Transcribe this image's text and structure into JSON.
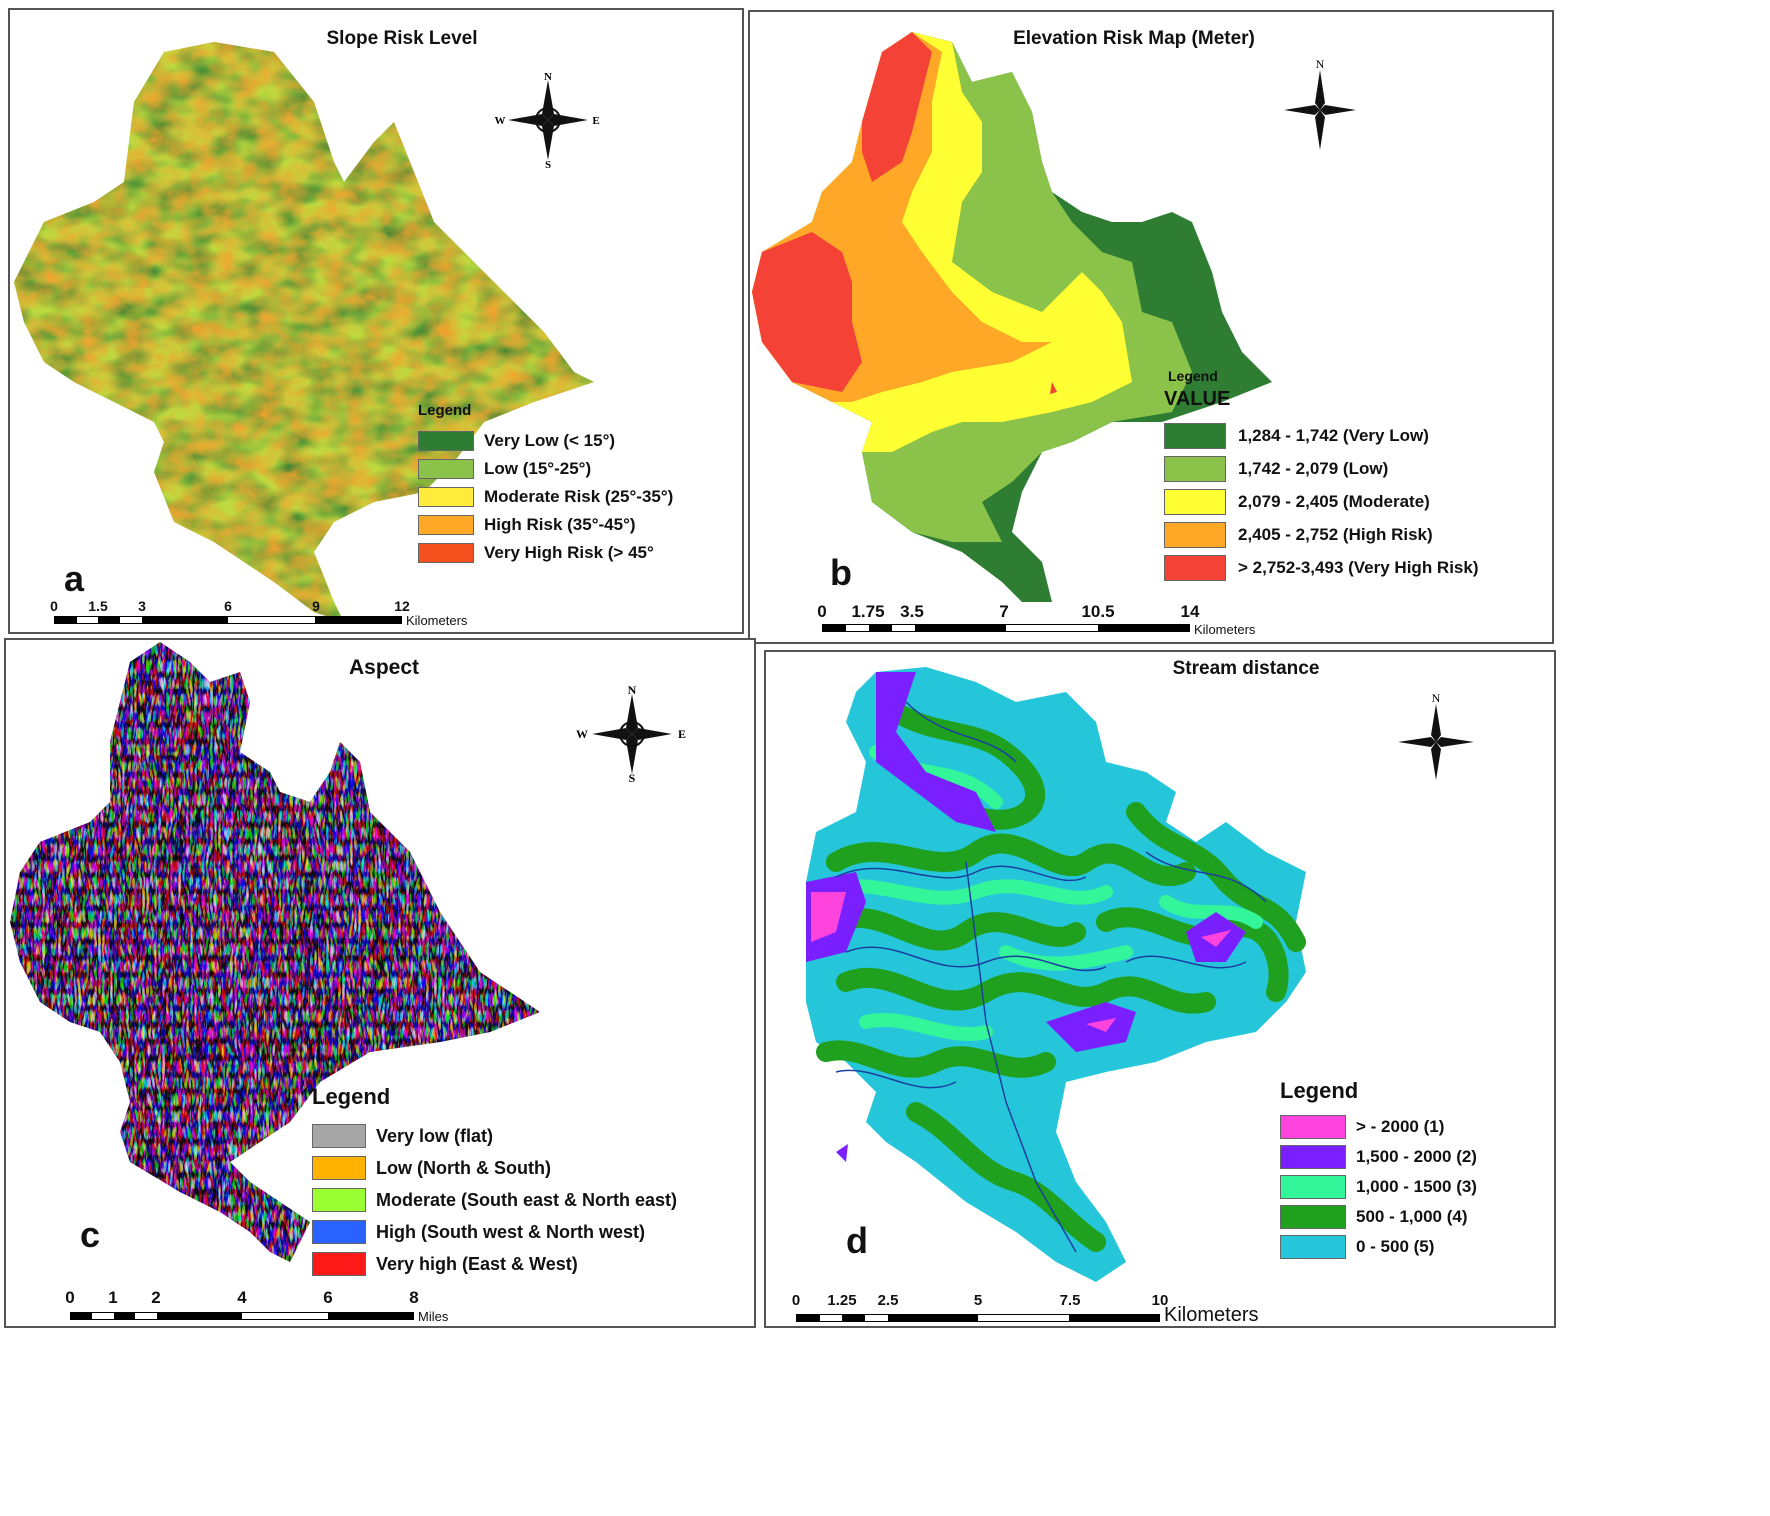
{
  "panels": {
    "a": {
      "title": "Slope Risk Level",
      "label": "a",
      "compass": {
        "n": "N",
        "s": "S",
        "e": "E",
        "w": "W"
      },
      "legend": {
        "title": "Legend",
        "items": [
          {
            "label": "Very Low (< 15°)",
            "color": "#2e7d32"
          },
          {
            "label": "Low (15°-25°)",
            "color": "#8bc34a"
          },
          {
            "label": "Moderate Risk (25°-35°)",
            "color": "#ffeb3b"
          },
          {
            "label": "High Risk (35°-45°)",
            "color": "#ffa726"
          },
          {
            "label": "Very High Risk (> 45°",
            "color": "#f4511e"
          }
        ]
      },
      "scale": {
        "ticks": [
          "0",
          "1.5",
          "3",
          "6",
          "9",
          "12"
        ],
        "unit": "Kilometers"
      }
    },
    "b": {
      "title": "Elevation Risk Map (Meter)",
      "label": "b",
      "compass": {
        "n": "N"
      },
      "legend": {
        "title": "Legend",
        "subtitle": "VALUE",
        "items": [
          {
            "label": "1,284 - 1,742 (Very Low)",
            "color": "#2e7d32"
          },
          {
            "label": "1,742 - 2,079 (Low)",
            "color": "#8bc34a"
          },
          {
            "label": "2,079 - 2,405 (Moderate)",
            "color": "#ffff33"
          },
          {
            "label": "2,405 - 2,752 (High Risk)",
            "color": "#ffa726"
          },
          {
            "label": "> 2,752-3,493 (Very High Risk)",
            "color": "#f44336"
          }
        ]
      },
      "scale": {
        "ticks": [
          "0",
          "1.75",
          "3.5",
          "7",
          "10.5",
          "14"
        ],
        "unit": "Kilometers"
      }
    },
    "c": {
      "title": "Aspect",
      "label": "c",
      "compass": {
        "n": "N",
        "s": "S",
        "e": "E",
        "w": "W"
      },
      "legend": {
        "title": "Legend",
        "items": [
          {
            "label": "Very low (flat)",
            "color": "#a6a6a6"
          },
          {
            "label": "Low (North & South)",
            "color": "#ffb300"
          },
          {
            "label": "Moderate (South east & North east)",
            "color": "#9cff33"
          },
          {
            "label": "High (South west & North west)",
            "color": "#2962ff"
          },
          {
            "label": "Very high (East & West)",
            "color": "#ff1a1a"
          }
        ]
      },
      "scale": {
        "ticks": [
          "0",
          "1",
          "2",
          "4",
          "6",
          "8"
        ],
        "unit": "Miles"
      }
    },
    "d": {
      "title": "Stream distance",
      "label": "d",
      "compass": {
        "n": "N"
      },
      "legend": {
        "title": "Legend",
        "items": [
          {
            "label": "> - 2000 (1)",
            "color": "#ff44dd"
          },
          {
            "label": "1,500 - 2000 (2)",
            "color": "#7a1fff"
          },
          {
            "label": "1,000 - 1500 (3)",
            "color": "#33f59a"
          },
          {
            "label": "500 - 1,000 (4)",
            "color": "#1fa01f"
          },
          {
            "label": "0 -  500 (5)",
            "color": "#26c6da"
          }
        ]
      },
      "scale": {
        "ticks": [
          "0",
          "1.25",
          "2.5",
          "5",
          "7.5",
          "10"
        ],
        "unit": "Kilometers"
      }
    }
  }
}
